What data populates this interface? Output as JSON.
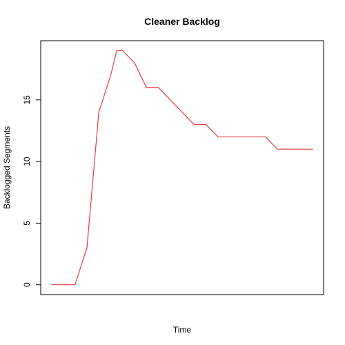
{
  "chart_data": {
    "type": "line",
    "title": "Cleaner Backlog",
    "xlabel": "Time",
    "ylabel": "Backlogged Segments",
    "ylim": [
      -0.8,
      19.8
    ],
    "yticks": [
      0,
      5,
      10,
      15
    ],
    "ytick_labels": [
      "0",
      "5",
      "10",
      "15"
    ],
    "x_axis_ticks_shown": false,
    "grid": false,
    "legend": "none",
    "series": [
      {
        "color": "#e8383d",
        "x": [
          1,
          2,
          3,
          4,
          5,
          6,
          6.5,
          7,
          8,
          9,
          10,
          11,
          12,
          13,
          14,
          15,
          16,
          17,
          18,
          19,
          20,
          21,
          22,
          23
        ],
        "y": [
          0,
          0,
          0,
          3,
          14,
          17,
          19,
          19,
          18,
          16,
          16,
          15,
          14,
          13,
          13,
          12,
          12,
          12,
          12,
          12,
          11,
          11,
          11,
          11
        ]
      }
    ]
  }
}
